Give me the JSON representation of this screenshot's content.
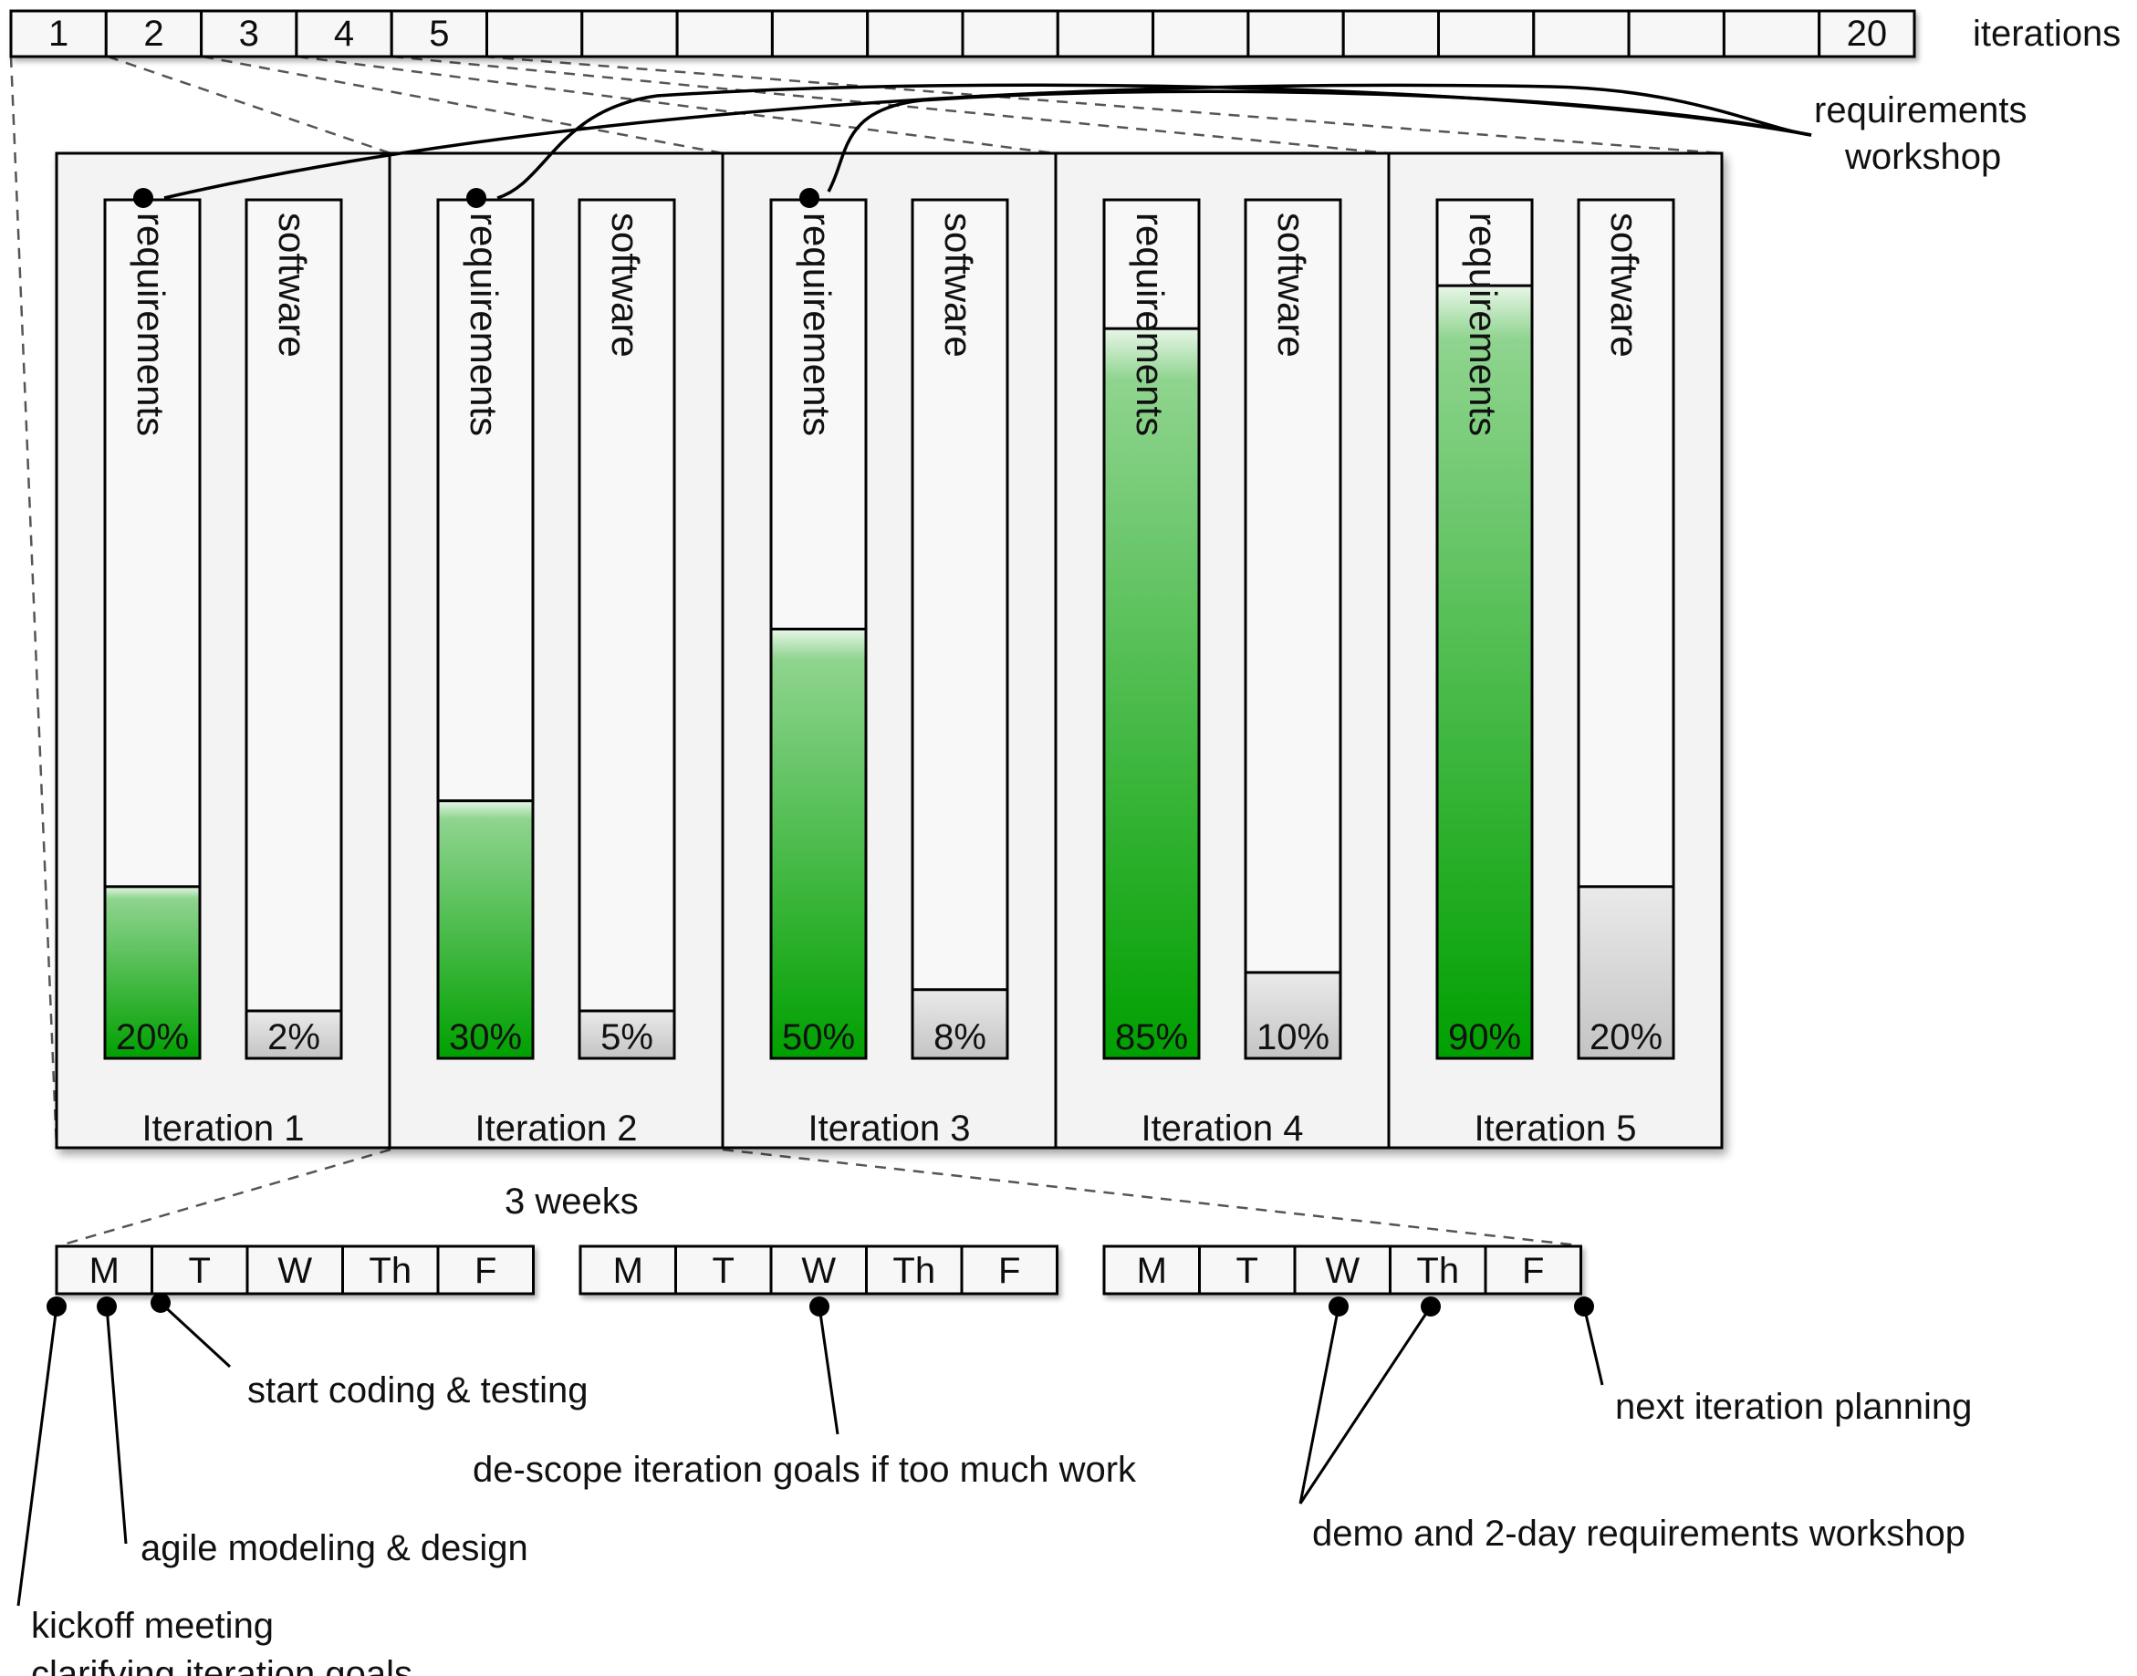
{
  "iterations_bar": {
    "cells": [
      "1",
      "2",
      "3",
      "4",
      "5",
      "",
      "",
      "",
      "",
      "",
      "",
      "",
      "",
      "",
      "",
      "",
      "",
      "",
      "",
      "20"
    ],
    "label": "iterations"
  },
  "workshop_label": [
    "requirements",
    "workshop"
  ],
  "iterations": [
    {
      "name": "Iteration 1",
      "req_label": "requirements",
      "sw_label": "software",
      "requirements": 20,
      "software": 2,
      "req_text": "20%",
      "sw_text": "2%",
      "workshop_dot": true
    },
    {
      "name": "Iteration 2",
      "req_label": "requirements",
      "sw_label": "software",
      "requirements": 30,
      "software": 5,
      "req_text": "30%",
      "sw_text": "5%",
      "workshop_dot": true
    },
    {
      "name": "Iteration 3",
      "req_label": "requirements",
      "sw_label": "software",
      "requirements": 50,
      "software": 8,
      "req_text": "50%",
      "sw_text": "8%",
      "workshop_dot": true
    },
    {
      "name": "Iteration 4",
      "req_label": "requirements",
      "sw_label": "software",
      "requirements": 85,
      "software": 10,
      "req_text": "85%",
      "sw_text": "10%",
      "workshop_dot": false
    },
    {
      "name": "Iteration 5",
      "req_label": "requirements",
      "sw_label": "software",
      "requirements": 90,
      "software": 20,
      "req_text": "90%",
      "sw_text": "20%",
      "workshop_dot": false
    }
  ],
  "duration_label": "3 weeks",
  "weeks": [
    [
      "M",
      "T",
      "W",
      "Th",
      "F"
    ],
    [
      "M",
      "T",
      "W",
      "Th",
      "F"
    ],
    [
      "M",
      "T",
      "W",
      "Th",
      "F"
    ]
  ],
  "annotations": {
    "start_coding": "start coding & testing",
    "descope": "de-scope iteration goals if too much work",
    "next_planning": "next iteration planning",
    "demo_workshop": "demo and 2-day requirements workshop",
    "agile_modeling": "agile modeling & design",
    "kickoff_1": "kickoff meeting",
    "kickoff_2": "clarifying iteration goals"
  },
  "colors": {
    "fill_green_dark": "#00a000",
    "fill_green_light": "#9ad89a",
    "fill_gray": "#cccccc",
    "panel_bg": "#f3f3f3"
  }
}
